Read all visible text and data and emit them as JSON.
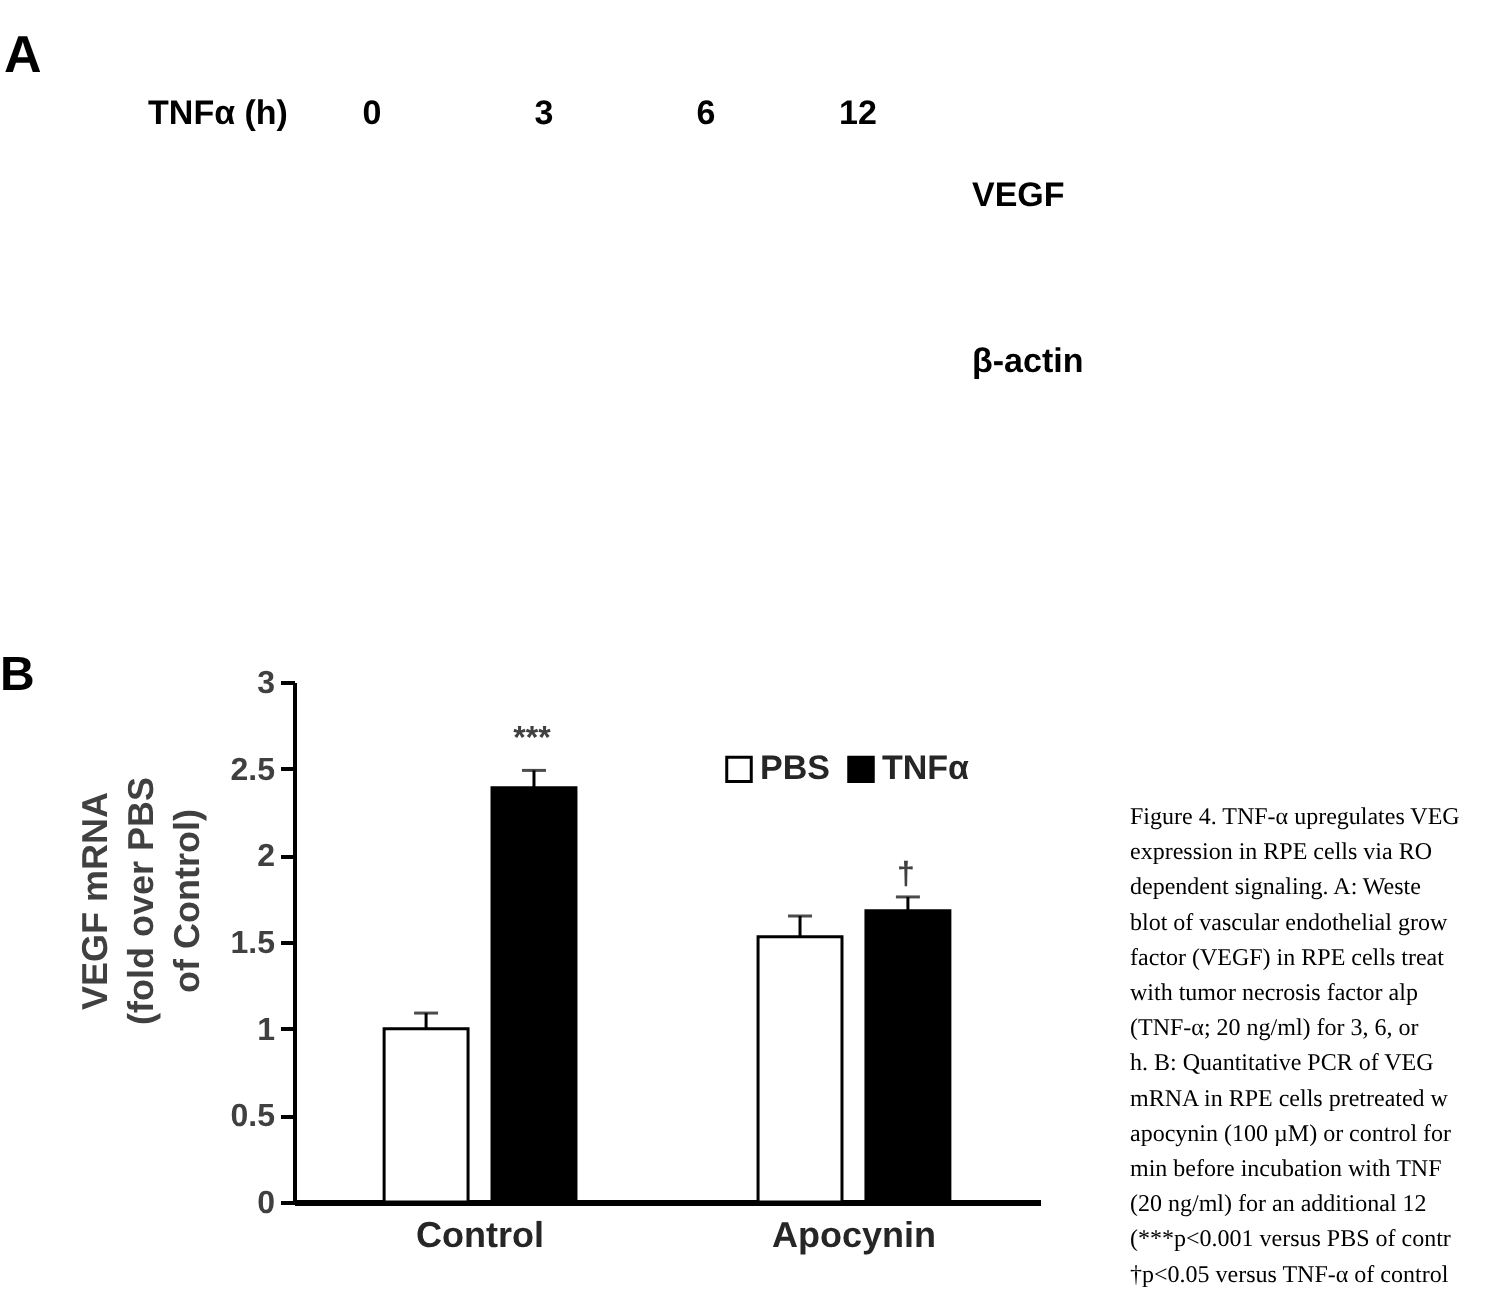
{
  "chart_data": [
    {
      "type": "other",
      "title": "A",
      "annotations": [
        "TNFα (h)",
        "0",
        "3",
        "6",
        "12",
        "VEGF",
        "β-actin"
      ]
    },
    {
      "type": "bar",
      "title": "B",
      "ylabel": "VEGF mRNA\n(fold over PBS\nof Control)",
      "categories": [
        "Control",
        "Apocynin"
      ],
      "series": [
        {
          "name": "PBS",
          "color": "#ffffff",
          "values": [
            1.0,
            1.53
          ],
          "errors": [
            0.09,
            0.12
          ]
        },
        {
          "name": "TNFα",
          "color": "#000000",
          "values": [
            2.39,
            1.68
          ],
          "errors": [
            0.1,
            0.08
          ]
        }
      ],
      "ylim": [
        0,
        3
      ],
      "yticks": [
        0,
        0.5,
        1,
        1.5,
        2,
        2.5,
        3
      ],
      "legend": "top right",
      "annotations": [
        "***",
        "†",
        "Figure 4. TNF-α upregulates VEG",
        "expression in RPE cells via RO",
        "dependent signaling. A: Weste",
        "blot of vascular endothelial grow",
        "factor (VEGF) in RPE cells treat",
        "with tumor necrosis factor alp",
        "(TNF-α; 20 ng/ml) for 3, 6, or",
        "h. B: Quantitative PCR of VEG",
        "mRNA in RPE cells pretreated w",
        "apocynin (100 µM) or control for",
        "min before incubation with TNF",
        "(20 ng/ml) for an additional 12",
        "(***p<0.001 versus PBS of contr",
        "†p<0.05 versus TNF-α of control"
      ]
    }
  ]
}
